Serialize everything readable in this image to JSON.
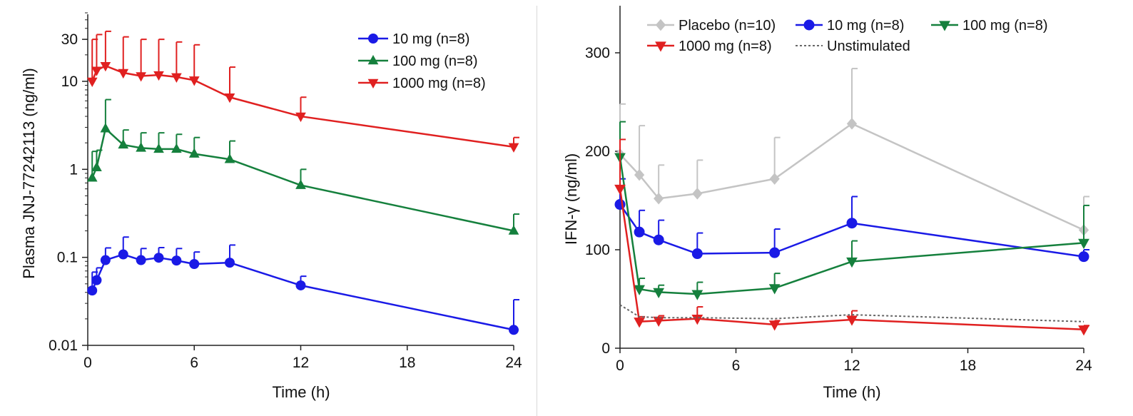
{
  "chart_data": [
    {
      "type": "line",
      "xlabel": "Time (h)",
      "ylabel": "Plasma JNJ-77242113 (ng/ml)",
      "yscale": "log",
      "ylim": [
        0.01,
        60
      ],
      "xlim": [
        0,
        24
      ],
      "x_ticks": [
        0,
        6,
        12,
        18,
        24
      ],
      "x_tick_labels": [
        "0",
        "6",
        "12",
        "18",
        "24"
      ],
      "y_ticks": [
        0.01,
        0.1,
        1,
        10,
        30
      ],
      "y_tick_labels": [
        "0.01",
        "0.1",
        "1",
        "10",
        "30"
      ],
      "grid": false,
      "legend_position": "top-right",
      "series": [
        {
          "name": "10 mg (n=8)",
          "color": "#1a1ae6",
          "marker": "circle",
          "x": [
            0.25,
            0.5,
            1,
            2,
            3,
            4,
            5,
            6,
            8,
            12,
            24
          ],
          "y": [
            0.042,
            0.055,
            0.093,
            0.108,
            0.093,
            0.099,
            0.092,
            0.084,
            0.087,
            0.048,
            0.015
          ],
          "error_upper": [
            0.068,
            0.076,
            0.128,
            0.17,
            0.126,
            0.129,
            0.126,
            0.115,
            0.138,
            0.061,
            0.033
          ]
        },
        {
          "name": "100 mg (n=8)",
          "color": "#15803d",
          "marker": "triangle-up",
          "x": [
            0.25,
            0.5,
            1,
            2,
            3,
            4,
            5,
            6,
            8,
            12,
            24
          ],
          "y": [
            0.8,
            1.05,
            2.9,
            1.9,
            1.75,
            1.7,
            1.7,
            1.5,
            1.3,
            0.66,
            0.2
          ],
          "error_upper": [
            1.6,
            1.65,
            6.2,
            2.8,
            2.6,
            2.6,
            2.5,
            2.3,
            2.1,
            1.0,
            0.31
          ]
        },
        {
          "name": "1000 mg (n=8)",
          "color": "#e02020",
          "marker": "triangle-down",
          "x": [
            0.25,
            0.5,
            1,
            2,
            3,
            4,
            5,
            6,
            8,
            12,
            24
          ],
          "y": [
            10.0,
            13.3,
            15.0,
            12.5,
            11.5,
            11.8,
            11.2,
            10.3,
            6.6,
            4.0,
            1.8
          ],
          "error_upper": [
            30,
            34,
            37,
            32,
            30,
            30,
            28,
            26,
            14.5,
            6.6,
            2.3
          ]
        }
      ]
    },
    {
      "type": "line",
      "xlabel": "Time (h)",
      "ylabel": "IFN-γ (ng/ml)",
      "ylim": [
        0,
        350
      ],
      "xlim": [
        0,
        24
      ],
      "x_ticks": [
        0,
        6,
        12,
        18,
        24
      ],
      "x_tick_labels": [
        "0",
        "6",
        "12",
        "18",
        "24"
      ],
      "y_ticks": [
        0,
        100,
        200,
        300
      ],
      "y_tick_labels": [
        "0",
        "100",
        "200",
        "300"
      ],
      "grid": false,
      "legend_position": "top",
      "series": [
        {
          "name": "Placebo (n=10)",
          "color": "#c4c4c4",
          "marker": "diamond",
          "x": [
            0,
            1,
            2,
            4,
            8,
            12,
            24
          ],
          "y": [
            197,
            176,
            152,
            157,
            172,
            228,
            120
          ],
          "error_upper": [
            248,
            226,
            186,
            191,
            214,
            284,
            154
          ]
        },
        {
          "name": "10 mg (n=8)",
          "color": "#1a1ae6",
          "marker": "circle",
          "x": [
            0,
            1,
            2,
            4,
            8,
            12,
            24
          ],
          "y": [
            146,
            118,
            110,
            96,
            97,
            127,
            93
          ],
          "error_upper": [
            172,
            140,
            130,
            117,
            121,
            154,
            100
          ]
        },
        {
          "name": "100 mg (n=8)",
          "color": "#15803d",
          "marker": "triangle-down",
          "x": [
            0,
            1,
            2,
            4,
            8,
            12,
            24
          ],
          "y": [
            194,
            60,
            57,
            55,
            61,
            88,
            107
          ],
          "error_upper": [
            230,
            71,
            64,
            67,
            76,
            109,
            145
          ]
        },
        {
          "name": "1000 mg (n=8)",
          "color": "#e02020",
          "marker": "triangle-down",
          "x": [
            0,
            1,
            2,
            4,
            8,
            12,
            24
          ],
          "y": [
            162,
            27,
            28,
            30,
            24,
            29,
            19
          ],
          "error_upper": [
            212,
            32,
            33,
            42,
            28,
            38,
            23
          ]
        },
        {
          "name": "Unstimulated",
          "color": "#666666",
          "marker": "none",
          "linestyle": "dotted",
          "x": [
            0,
            1,
            2,
            4,
            8,
            12,
            24
          ],
          "y": [
            44,
            32,
            31,
            31,
            30,
            34,
            27
          ]
        }
      ]
    }
  ]
}
